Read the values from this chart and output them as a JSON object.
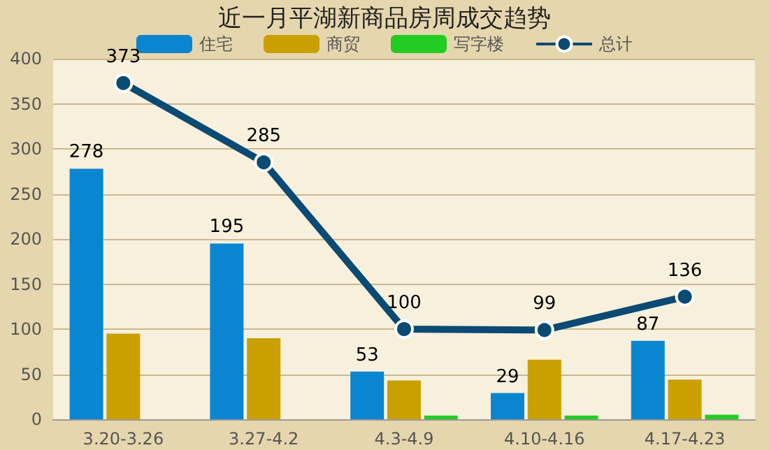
{
  "chart_data": {
    "type": "bar",
    "title": "近一月平湖新商品房周成交趋势",
    "categories": [
      "3.20-3.26",
      "3.27-4.2",
      "4.3-4.9",
      "4.10-4.16",
      "4.17-4.23"
    ],
    "series": [
      {
        "name": "住宅",
        "color": "#0a86d0",
        "values": [
          278,
          195,
          53,
          29,
          87
        ],
        "value_labels": [
          "278",
          "195",
          "53",
          "29",
          "87"
        ]
      },
      {
        "name": "商贸",
        "color": "#c9a000",
        "values": [
          95,
          90,
          43,
          66,
          44
        ]
      },
      {
        "name": "写字楼",
        "color": "#22cc22",
        "values": [
          null,
          null,
          4,
          4,
          5
        ]
      },
      {
        "name": "总计",
        "type": "line",
        "color": "#0b4a73",
        "values": [
          373,
          285,
          100,
          99,
          136
        ],
        "value_labels": [
          "373",
          "285",
          "100",
          "99",
          "136"
        ]
      }
    ],
    "ylim": [
      0,
      400
    ],
    "yticks": [
      0,
      50,
      100,
      150,
      200,
      250,
      300,
      350,
      400
    ],
    "grid": "y",
    "legend": "top",
    "marker": "circle"
  }
}
